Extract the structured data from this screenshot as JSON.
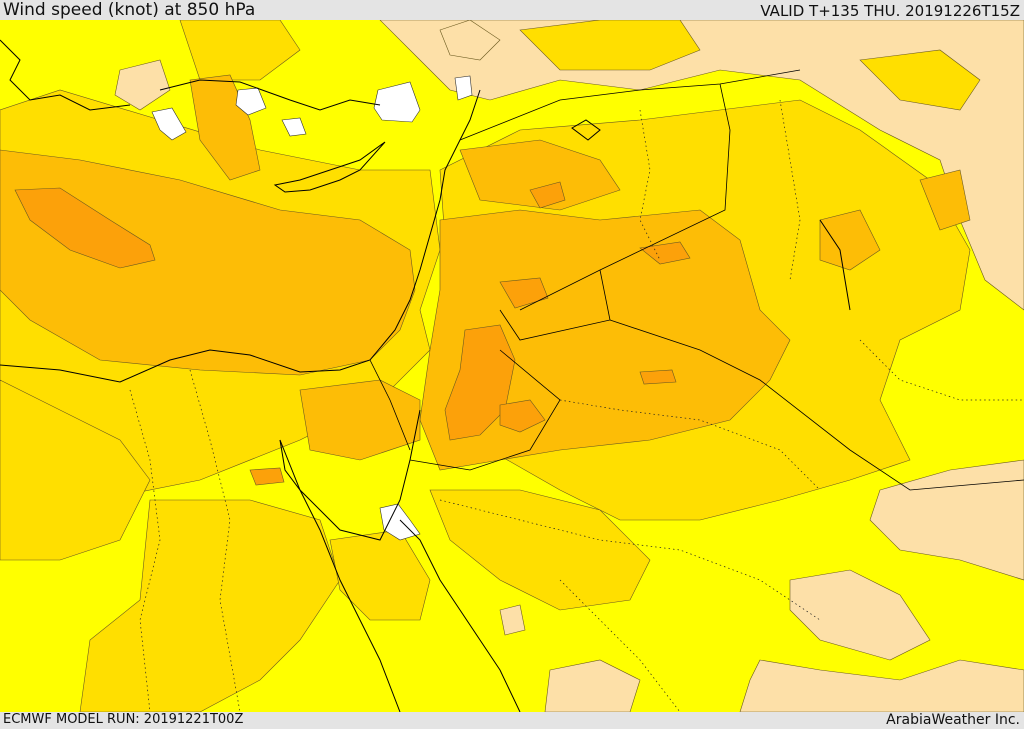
{
  "header": {
    "title": "Wind speed (knot) at 850 hPa",
    "valid_time": "VALID T+135 THU. 20191226T15Z"
  },
  "footer": {
    "model_run": "ECMWF MODEL RUN: 20191221T00Z",
    "credit": "ArabiaWeather Inc."
  },
  "map": {
    "field": "wind speed at 850 hPa",
    "units": "knot",
    "legend_shown": false,
    "fill_colors": {
      "calm": "#ffffff",
      "light": "#fde0a8",
      "low": "#ffff00",
      "moderate": "#ffdf00",
      "strong": "#fdbd06",
      "stronger": "#fca10a"
    },
    "coastline_color": "#000000",
    "border_style": "dotted"
  }
}
